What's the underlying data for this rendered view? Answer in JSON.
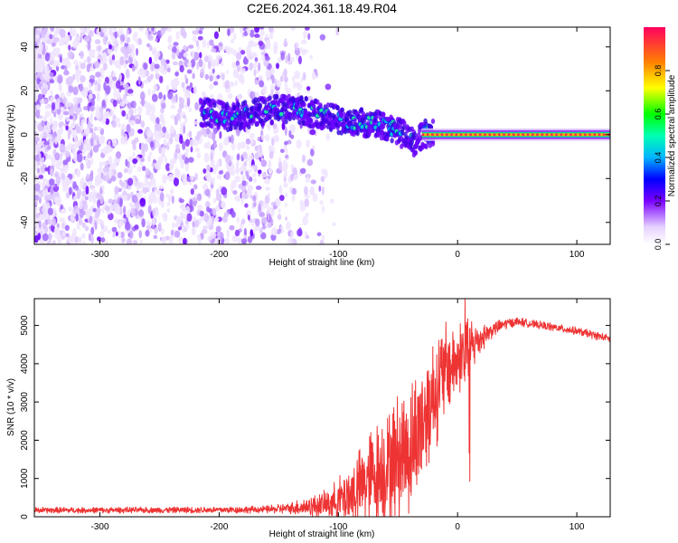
{
  "title": "C2E6.2024.361.18.49.R04",
  "chart_data": [
    {
      "type": "heatmap",
      "xlabel": "Height of straight line (km)",
      "ylabel": "Frequency (Hz)",
      "xlim": [
        -355,
        128
      ],
      "ylim": [
        -50,
        49
      ],
      "xticks": [
        -300,
        -200,
        -100,
        0,
        100
      ],
      "yticks": [
        -40,
        -20,
        0,
        20,
        40
      ],
      "grid": false,
      "colorbar": {
        "label": "Normalized spectral amplitude",
        "range": [
          0,
          1
        ],
        "ticks": [
          0.0,
          0.2,
          0.4,
          0.6,
          0.8
        ]
      },
      "features": {
        "noise_region_x": [
          -355,
          -110
        ],
        "doppler_trace": [
          {
            "x": -210,
            "y": 10
          },
          {
            "x": -190,
            "y": 8
          },
          {
            "x": -170,
            "y": 10
          },
          {
            "x": -150,
            "y": 12
          },
          {
            "x": -130,
            "y": 11
          },
          {
            "x": -110,
            "y": 8
          },
          {
            "x": -90,
            "y": 6
          },
          {
            "x": -70,
            "y": 5
          },
          {
            "x": -55,
            "y": 3
          },
          {
            "x": -45,
            "y": 0
          },
          {
            "x": -35,
            "y": -4
          },
          {
            "x": -30,
            "y": 0
          },
          {
            "x": -20,
            "y": 1
          },
          {
            "x": -10,
            "y": 1
          },
          {
            "x": 0,
            "y": 2
          },
          {
            "x": 10,
            "y": 0
          },
          {
            "x": 128,
            "y": 0
          }
        ],
        "carrier_line_x": [
          -30,
          128
        ],
        "carrier_line_y": 0
      }
    },
    {
      "type": "line",
      "xlabel": "Height of straight line (km)",
      "ylabel": "SNR (10 * v/v)",
      "xlim": [
        -355,
        128
      ],
      "ylim": [
        0,
        5700
      ],
      "xticks": [
        -300,
        -200,
        -100,
        0,
        100
      ],
      "yticks": [
        0,
        1000,
        2000,
        3000,
        4000,
        5000
      ],
      "grid": false,
      "series": [
        {
          "color": "#ee3333",
          "x": [
            -355,
            -300,
            -250,
            -200,
            -160,
            -140,
            -130,
            -120,
            -110,
            -100,
            -90,
            -80,
            -70,
            -60,
            -50,
            -40,
            -30,
            -20,
            -10,
            0,
            5,
            10,
            20,
            30,
            40,
            50,
            60,
            80,
            100,
            128
          ],
          "values": [
            170,
            170,
            175,
            180,
            190,
            220,
            260,
            280,
            320,
            450,
            600,
            800,
            1100,
            1300,
            1600,
            1800,
            2500,
            3200,
            3800,
            4100,
            4300,
            4400,
            4700,
            4900,
            5050,
            5100,
            5050,
            4950,
            4850,
            4650
          ],
          "noise_amplitude": [
            80,
            80,
            80,
            90,
            100,
            150,
            250,
            300,
            400,
            600,
            900,
            1100,
            1300,
            1500,
            1700,
            1800,
            1800,
            1600,
            1300,
            900,
            1200,
            900,
            400,
            200,
            150,
            120,
            110,
            110,
            110,
            110
          ]
        }
      ]
    }
  ]
}
